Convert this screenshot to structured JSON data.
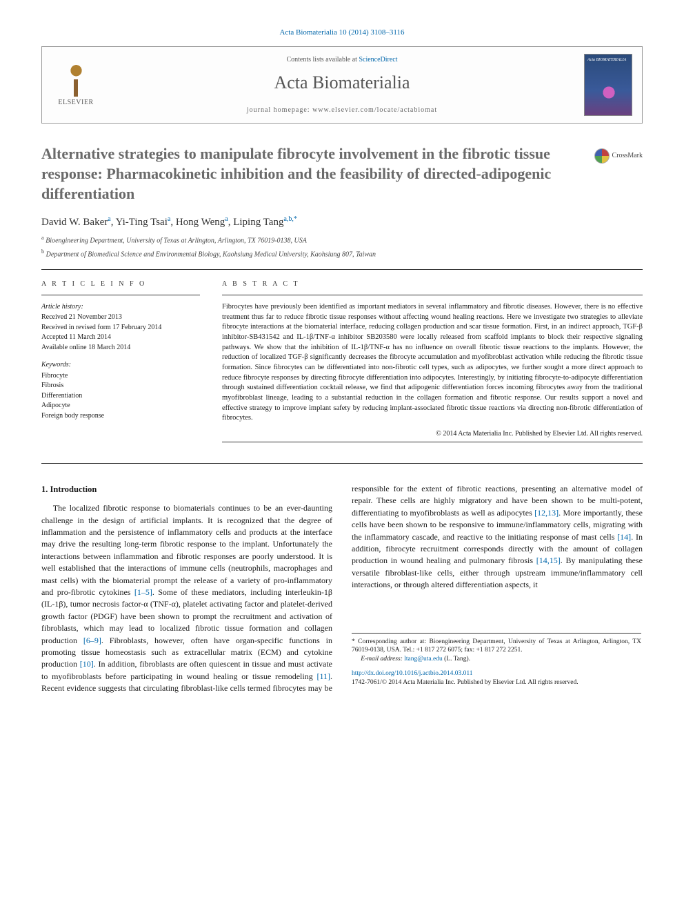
{
  "citation": "Acta Biomaterialia 10 (2014) 3108–3116",
  "header": {
    "contents_prefix": "Contents lists available at ",
    "contents_link": "ScienceDirect",
    "journal": "Acta Biomaterialia",
    "homepage_label": "journal homepage: ",
    "homepage_url": "www.elsevier.com/locate/actabiomat",
    "publisher": "ELSEVIER",
    "cover_text": "Acta BIOMATERIALIA"
  },
  "crossmark": "CrossMark",
  "title": "Alternative strategies to manipulate fibrocyte involvement in the fibrotic tissue response: Pharmacokinetic inhibition and the feasibility of directed-adipogenic differentiation",
  "authors_html": "David W. Baker<sup>a</sup>, Yi-Ting Tsai<sup>a</sup>, Hong Weng<sup>a</sup>, Liping Tang<sup>a,b,*</sup>",
  "affiliations": [
    {
      "sup": "a",
      "text": "Bioengineering Department, University of Texas at Arlington, Arlington, TX 76019-0138, USA"
    },
    {
      "sup": "b",
      "text": "Department of Biomedical Science and Environmental Biology, Kaohsiung Medical University, Kaohsiung 807, Taiwan"
    }
  ],
  "article_info": {
    "heading": "A R T I C L E   I N F O",
    "history_label": "Article history:",
    "history": [
      "Received 21 November 2013",
      "Received in revised form 17 February 2014",
      "Accepted 11 March 2014",
      "Available online 18 March 2014"
    ],
    "keywords_label": "Keywords:",
    "keywords": [
      "Fibrocyte",
      "Fibrosis",
      "Differentiation",
      "Adipocyte",
      "Foreign body response"
    ]
  },
  "abstract": {
    "heading": "A B S T R A C T",
    "text": "Fibrocytes have previously been identified as important mediators in several inflammatory and fibrotic diseases. However, there is no effective treatment thus far to reduce fibrotic tissue responses without affecting wound healing reactions. Here we investigate two strategies to alleviate fibrocyte interactions at the biomaterial interface, reducing collagen production and scar tissue formation. First, in an indirect approach, TGF-β inhibitor-SB431542 and IL-1β/TNF-α inhibitor SB203580 were locally released from scaffold implants to block their respective signaling pathways. We show that the inhibition of IL-1β/TNF-α has no influence on overall fibrotic tissue reactions to the implants. However, the reduction of localized TGF-β significantly decreases the fibrocyte accumulation and myofibroblast activation while reducing the fibrotic tissue formation. Since fibrocytes can be differentiated into non-fibrotic cell types, such as adipocytes, we further sought a more direct approach to reduce fibrocyte responses by directing fibrocyte differentiation into adipocytes. Interestingly, by initiating fibrocyte-to-adipocyte differentiation through sustained differentiation cocktail release, we find that adipogenic differentiation forces incoming fibrocytes away from the traditional myofibroblast lineage, leading to a substantial reduction in the collagen formation and fibrotic response. Our results support a novel and effective strategy to improve implant safety by reducing implant-associated fibrotic tissue reactions via directing non-fibrotic differentiation of fibrocytes.",
    "copyright": "© 2014 Acta Materialia Inc. Published by Elsevier Ltd. All rights reserved."
  },
  "intro": {
    "heading": "1. Introduction",
    "para1": "The localized fibrotic response to biomaterials continues to be an ever-daunting challenge in the design of artificial implants. It is recognized that the degree of inflammation and the persistence of inflammatory cells and products at the interface may drive the resulting long-term fibrotic response to the implant. Unfortunately the interactions between inflammation and fibrotic responses are poorly understood. It is well established that the interactions of immune cells (neutrophils, macrophages and mast cells) with the biomaterial prompt the release of a variety of pro-inflammatory and pro-fibrotic cytokines ",
    "ref1": "[1–5]",
    "para1b": ". Some of these mediators, including interleukin-1β (IL-1β), tumor necrosis factor-α (TNF-α), platelet activating factor and platelet-derived growth factor (PDGF)",
    "para2": "have been shown to prompt the recruitment and activation of fibroblasts, which may lead to localized fibrotic tissue formation and collagen production ",
    "ref2": "[6–9]",
    "para2b": ". Fibroblasts, however, often have organ-specific functions in promoting tissue homeostasis such as extracellular matrix (ECM) and cytokine production ",
    "ref3": "[10]",
    "para2c": ". In addition, fibroblasts are often quiescent in tissue and must activate to myofibroblasts before participating in wound healing or tissue remodeling ",
    "ref4": "[11]",
    "para2d": ". Recent evidence suggests that circulating fibroblast-like cells termed fibrocytes may be responsible for the extent of fibrotic reactions, presenting an alternative model of repair. These cells are highly migratory and have been shown to be multi-potent, differentiating to myofibroblasts as well as adipocytes ",
    "ref5": "[12,13]",
    "para2e": ". More importantly, these cells have been shown to be responsive to immune/inflammatory cells, migrating with the inflammatory cascade, and reactive to the initiating response of mast cells ",
    "ref6": "[14]",
    "para2f": ". In addition, fibrocyte recruitment corresponds directly with the amount of collagen production in wound healing and pulmonary fibrosis ",
    "ref7": "[14,15]",
    "para2g": ". By manipulating these versatile fibroblast-like cells, either through upstream immune/inflammatory cell interactions, or through altered differentiation aspects, it"
  },
  "footnote": {
    "corresponding": "* Corresponding author at: Bioengineering Department, University of Texas at Arlington, Arlington, TX 76019-0138, USA. Tel.: +1 817 272 6075; fax: +1 817 272 2251.",
    "email_label": "E-mail address: ",
    "email": "ltang@uta.edu",
    "email_suffix": " (L. Tang).",
    "doi_url": "http://dx.doi.org/10.1016/j.actbio.2014.03.011",
    "copyright": "1742-7061/© 2014 Acta Materialia Inc. Published by Elsevier Ltd. All rights reserved."
  }
}
